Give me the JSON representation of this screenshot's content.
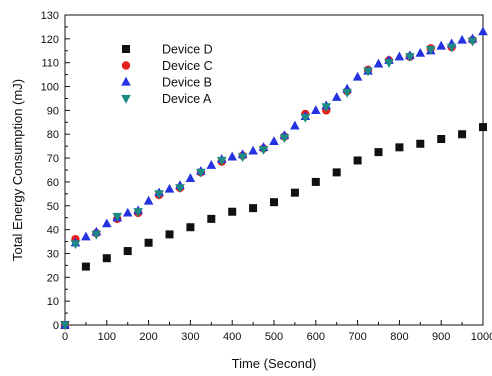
{
  "chart_data": {
    "type": "scatter",
    "title": "",
    "xlabel": "Time (Second)",
    "ylabel": "Total Energy Consumption (mJ)",
    "xlim": [
      0,
      1000
    ],
    "ylim": [
      0,
      130
    ],
    "xticks": [
      0,
      100,
      200,
      300,
      400,
      500,
      600,
      700,
      800,
      900,
      1000
    ],
    "yticks": [
      0,
      10,
      20,
      30,
      40,
      50,
      60,
      70,
      80,
      90,
      100,
      110,
      120,
      130
    ],
    "grid": false,
    "legend_position": "top-left",
    "series": [
      {
        "name": "Device D",
        "marker": "square",
        "color": "#111111",
        "x": [
          0,
          50,
          100,
          150,
          200,
          250,
          300,
          350,
          400,
          450,
          500,
          550,
          600,
          650,
          700,
          750,
          800,
          850,
          900,
          950,
          1000
        ],
        "y": [
          0,
          24.5,
          28,
          31,
          34.5,
          38,
          41,
          44.5,
          47.5,
          49,
          51.5,
          55.5,
          60,
          64,
          69,
          72.5,
          74.5,
          76,
          78,
          80,
          83
        ]
      },
      {
        "name": "Device C",
        "marker": "circle",
        "color": "#e8201e",
        "x": [
          0,
          25,
          75,
          125,
          175,
          225,
          275,
          325,
          375,
          425,
          475,
          525,
          575,
          625,
          675,
          725,
          775,
          825,
          875,
          925,
          975
        ],
        "y": [
          0,
          36,
          38.5,
          44.5,
          47,
          54.5,
          57.5,
          64,
          68.5,
          71,
          74,
          79,
          88.5,
          90,
          98,
          107,
          111,
          112.5,
          116,
          116.5,
          119.5
        ]
      },
      {
        "name": "Device B",
        "marker": "triangle-up",
        "color": "#2432e0",
        "x": [
          0,
          25,
          50,
          75,
          100,
          125,
          150,
          175,
          200,
          225,
          250,
          275,
          300,
          325,
          350,
          375,
          400,
          425,
          450,
          475,
          500,
          525,
          550,
          575,
          600,
          625,
          650,
          675,
          700,
          725,
          750,
          775,
          800,
          825,
          850,
          875,
          900,
          925,
          950,
          975,
          1000
        ],
        "y": [
          0,
          34.5,
          37,
          39,
          42.5,
          45,
          47,
          48,
          52,
          55.5,
          57,
          58.5,
          61.5,
          64.5,
          67,
          69.5,
          70.5,
          71.5,
          73,
          74.5,
          77,
          79.5,
          83.5,
          87.5,
          90,
          92,
          95.5,
          99,
          104,
          106.5,
          109.5,
          111,
          112.5,
          113,
          114,
          115,
          117,
          118,
          119.5,
          120,
          123
        ]
      },
      {
        "name": "Device A",
        "marker": "triangle-down",
        "color": "#1a8a82",
        "x": [
          0,
          25,
          75,
          125,
          175,
          225,
          275,
          325,
          375,
          425,
          475,
          525,
          575,
          625,
          675,
          725,
          775,
          825,
          875,
          925,
          975
        ],
        "y": [
          0,
          34,
          38,
          45.5,
          47.5,
          55,
          57.5,
          64,
          69,
          70.5,
          73.5,
          78.5,
          87,
          91.5,
          97.5,
          106.5,
          110,
          112.5,
          115.5,
          116.5,
          119
        ]
      }
    ]
  }
}
